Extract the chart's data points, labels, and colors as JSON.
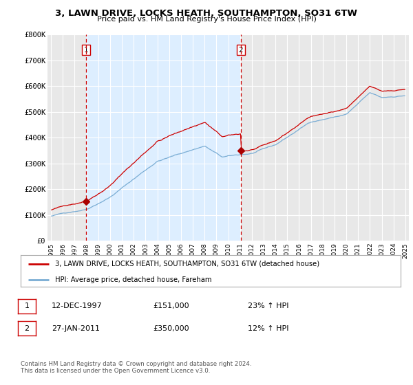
{
  "title": "3, LAWN DRIVE, LOCKS HEATH, SOUTHAMPTON, SO31 6TW",
  "subtitle": "Price paid vs. HM Land Registry's House Price Index (HPI)",
  "legend_line1": "3, LAWN DRIVE, LOCKS HEATH, SOUTHAMPTON, SO31 6TW (detached house)",
  "legend_line2": "HPI: Average price, detached house, Fareham",
  "annotation1_date": "12-DEC-1997",
  "annotation1_price": "£151,000",
  "annotation1_hpi": "23% ↑ HPI",
  "annotation2_date": "27-JAN-2011",
  "annotation2_price": "£350,000",
  "annotation2_hpi": "12% ↑ HPI",
  "footer": "Contains HM Land Registry data © Crown copyright and database right 2024.\nThis data is licensed under the Open Government Licence v3.0.",
  "hpi_line_color": "#7aadd4",
  "price_line_color": "#cc0000",
  "dot_color": "#aa0000",
  "dashed_line_color": "#cc0000",
  "annotation_box_color": "#cc0000",
  "shade_color": "#ddeeff",
  "ylim": [
    0,
    800000
  ],
  "yticks": [
    0,
    100000,
    200000,
    300000,
    400000,
    500000,
    600000,
    700000,
    800000
  ],
  "ytick_labels": [
    "£0",
    "£100K",
    "£200K",
    "£300K",
    "£400K",
    "£500K",
    "£600K",
    "£700K",
    "£800K"
  ],
  "xtick_years": [
    1995,
    1996,
    1997,
    1998,
    1999,
    2000,
    2001,
    2002,
    2003,
    2004,
    2005,
    2006,
    2007,
    2008,
    2009,
    2010,
    2011,
    2012,
    2013,
    2014,
    2015,
    2016,
    2017,
    2018,
    2019,
    2020,
    2021,
    2022,
    2023,
    2024,
    2025
  ],
  "sale1_x": 1997.95,
  "sale1_y": 151000,
  "sale2_x": 2011.07,
  "sale2_y": 350000,
  "bg_color": "#ffffff",
  "plot_bg_color": "#e8e8e8",
  "grid_color": "#ffffff"
}
